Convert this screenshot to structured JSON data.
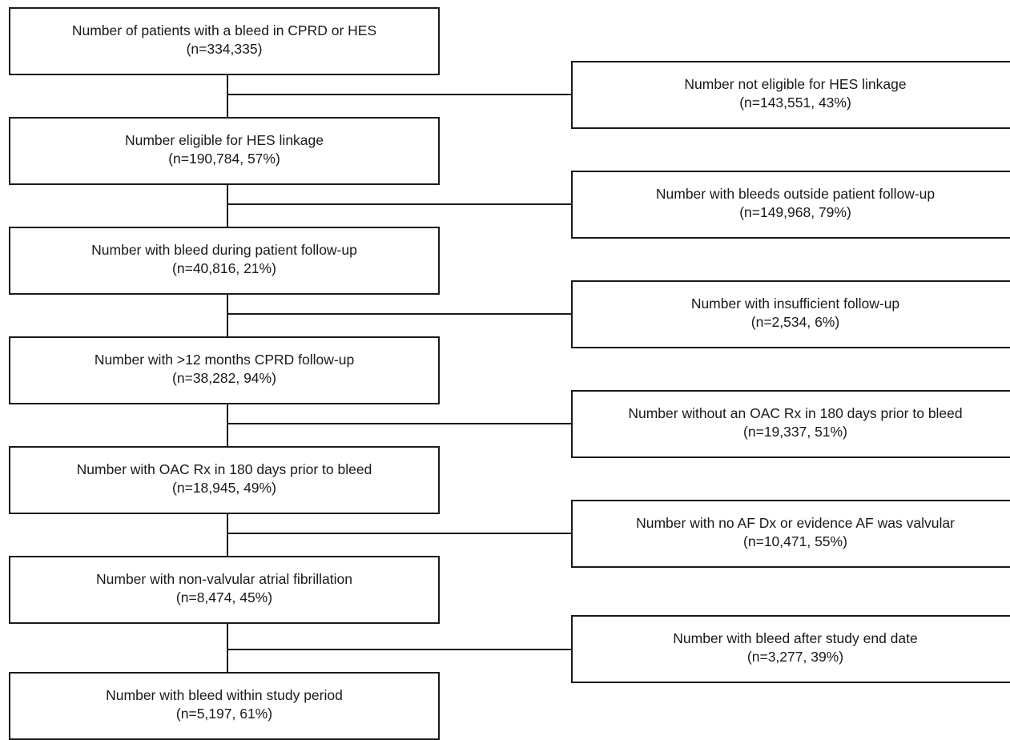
{
  "flow": {
    "main": [
      {
        "title": "Number of patients with a bleed in CPRD or HES",
        "count": "(n=334,335)"
      },
      {
        "title": "Number eligible for HES linkage",
        "count": "(n=190,784, 57%)"
      },
      {
        "title": "Number with bleed during patient follow-up",
        "count": "(n=40,816, 21%)"
      },
      {
        "title": "Number with >12 months CPRD follow-up",
        "count": "(n=38,282, 94%)"
      },
      {
        "title": "Number with OAC Rx in 180 days prior to bleed",
        "count": "(n=18,945, 49%)"
      },
      {
        "title": "Number with non-valvular atrial fibrillation",
        "count": "(n=8,474, 45%)"
      },
      {
        "title": "Number with bleed within study period",
        "count": "(n=5,197, 61%)"
      }
    ],
    "excluded": [
      {
        "title": "Number not eligible for HES linkage",
        "count": "(n=143,551, 43%)"
      },
      {
        "title": "Number with bleeds outside patient follow-up",
        "count": "(n=149,968, 79%)"
      },
      {
        "title": "Number with insufficient follow-up",
        "count": "(n=2,534, 6%)"
      },
      {
        "title": "Number without an OAC Rx in 180 days prior to bleed",
        "count": "(n=19,337, 51%)"
      },
      {
        "title": "Number with no AF Dx or evidence AF was valvular",
        "count": "(n=10,471, 55%)"
      },
      {
        "title": "Number with bleed after study end date",
        "count": "(n=3,277, 39%)"
      }
    ]
  }
}
